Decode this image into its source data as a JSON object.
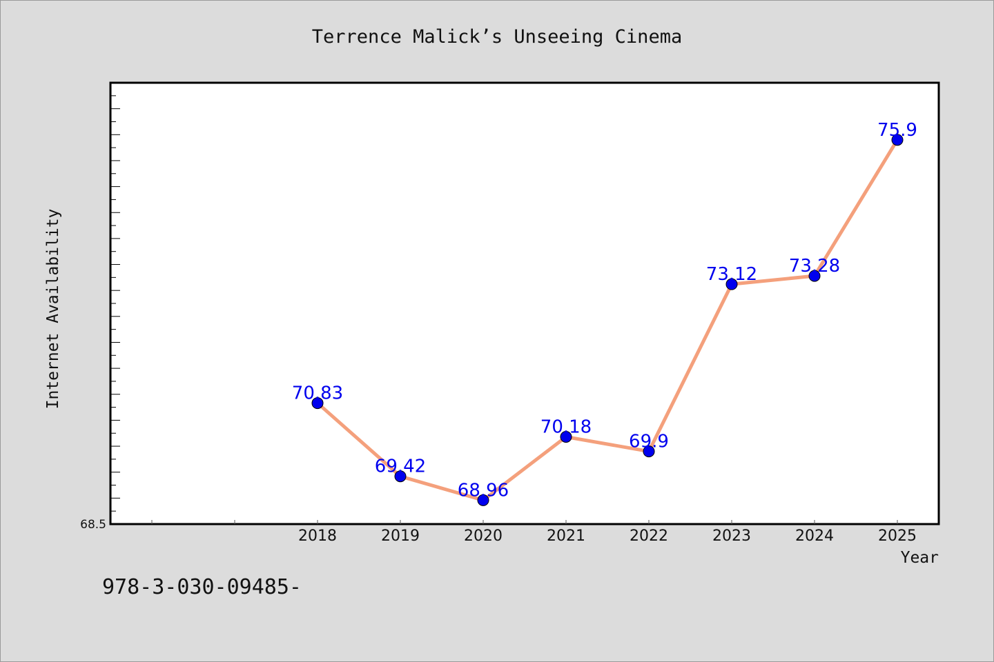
{
  "chart_data": {
    "type": "line",
    "title": "Terrence Malick’s Unseeing Cinema",
    "xlabel": "Year",
    "ylabel": "Internet Availability",
    "x": [
      "2018",
      "2019",
      "2020",
      "2021",
      "2022",
      "2023",
      "2024",
      "2025"
    ],
    "series": [
      {
        "values": [
          70.83,
          69.42,
          68.96,
          70.18,
          69.9,
          73.12,
          73.28,
          75.9
        ],
        "labels": [
          "70.83",
          "69.42",
          "68.96",
          "70.18",
          "69.9",
          "73.12",
          "73.28",
          "75.9"
        ]
      }
    ],
    "ylim": [
      68.5,
      77.0
    ],
    "xlim": [
      2015.5,
      2025.5
    ],
    "y_tick_labels": [
      "68.5"
    ],
    "grid": false,
    "colors": {
      "line": "#f4a07c",
      "marker": "#0000ee",
      "data_label": "#0000ee",
      "background": "#dcdcdc",
      "plot_area": "#ffffff"
    }
  },
  "footnote": "978-3-030-09485-"
}
